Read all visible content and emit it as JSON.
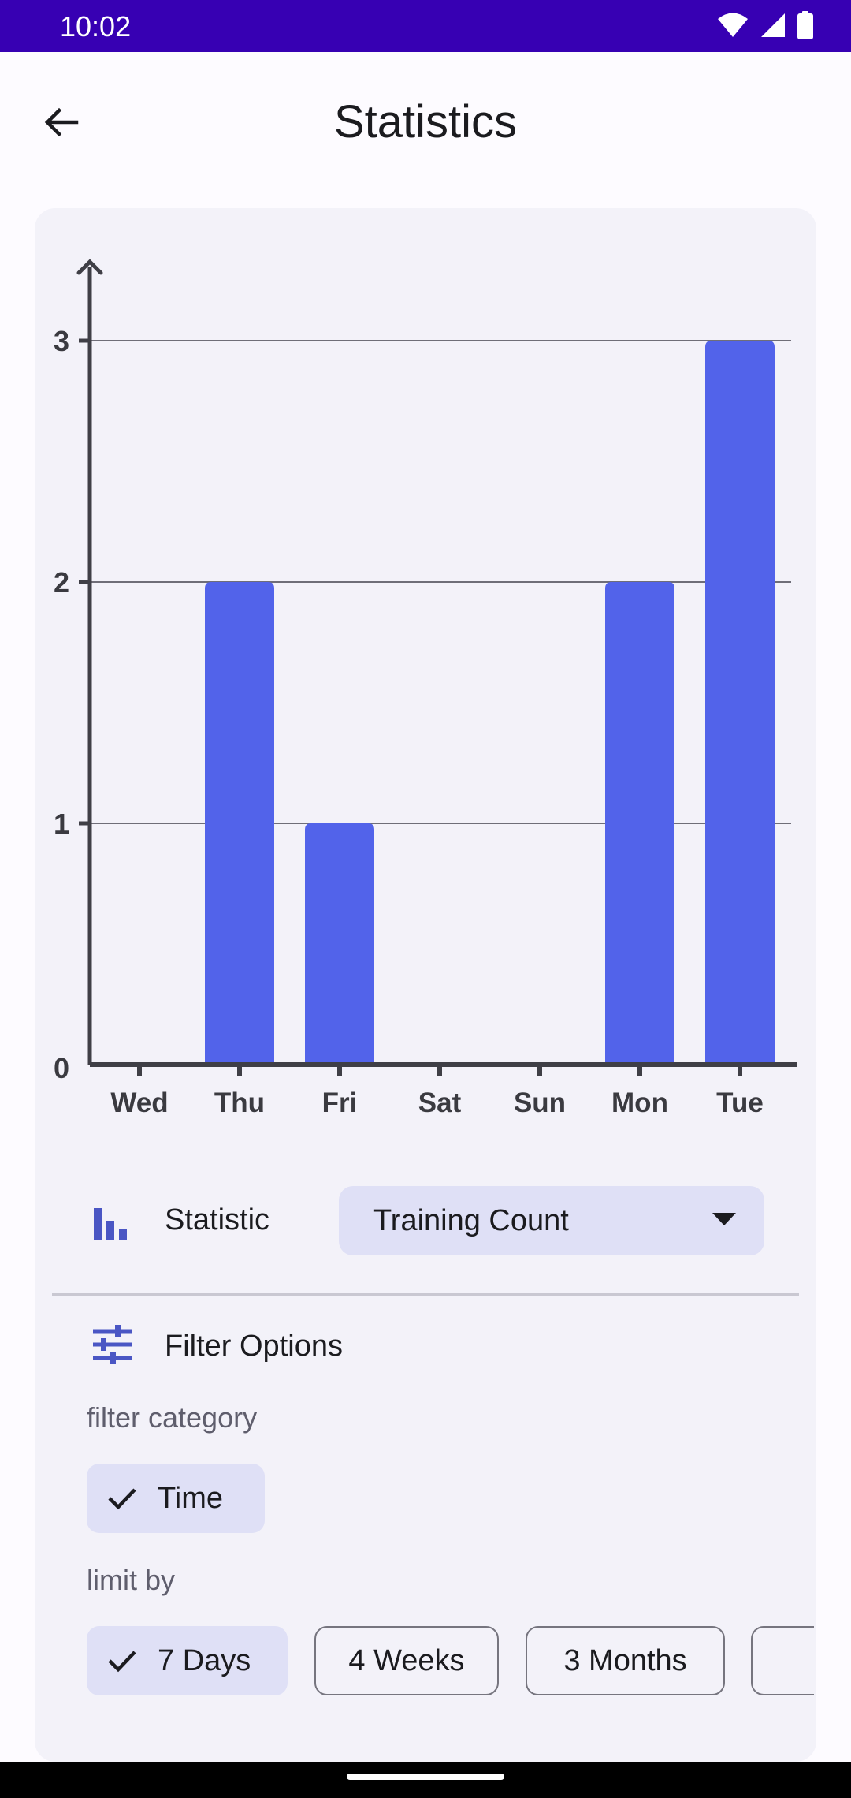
{
  "status_bar": {
    "time": "10:02",
    "icons": [
      "wifi-icon",
      "signal-icon",
      "battery-icon"
    ]
  },
  "app_bar": {
    "title": "Statistics",
    "back_icon": "arrow-back-icon"
  },
  "chart_data": {
    "type": "bar",
    "categories": [
      "Wed",
      "Thu",
      "Fri",
      "Sat",
      "Sun",
      "Mon",
      "Tue"
    ],
    "values": [
      0,
      2,
      1,
      0,
      0,
      2,
      3
    ],
    "yticks": [
      0,
      1,
      2,
      3
    ],
    "ylim": [
      0,
      3
    ],
    "grid": true,
    "bar_color": "#5263ea",
    "axis_color": "#3f3f46"
  },
  "statistic": {
    "icon": "bar-chart-icon",
    "label": "Statistic",
    "selected": "Training Count"
  },
  "filters": {
    "icon": "tune-icon",
    "title": "Filter Options",
    "category_label": "filter category",
    "category_chips": [
      {
        "label": "Time",
        "selected": true
      }
    ],
    "limit_label": "limit by",
    "limit_chips": [
      {
        "label": "7 Days",
        "selected": true
      },
      {
        "label": "4 Weeks",
        "selected": false
      },
      {
        "label": "3 Months",
        "selected": false
      }
    ]
  },
  "colors": {
    "accent": "#5263ea",
    "status_bar": "#3700b3",
    "chip_selected": "#dfe0f6",
    "card": "#f3f2f9"
  }
}
